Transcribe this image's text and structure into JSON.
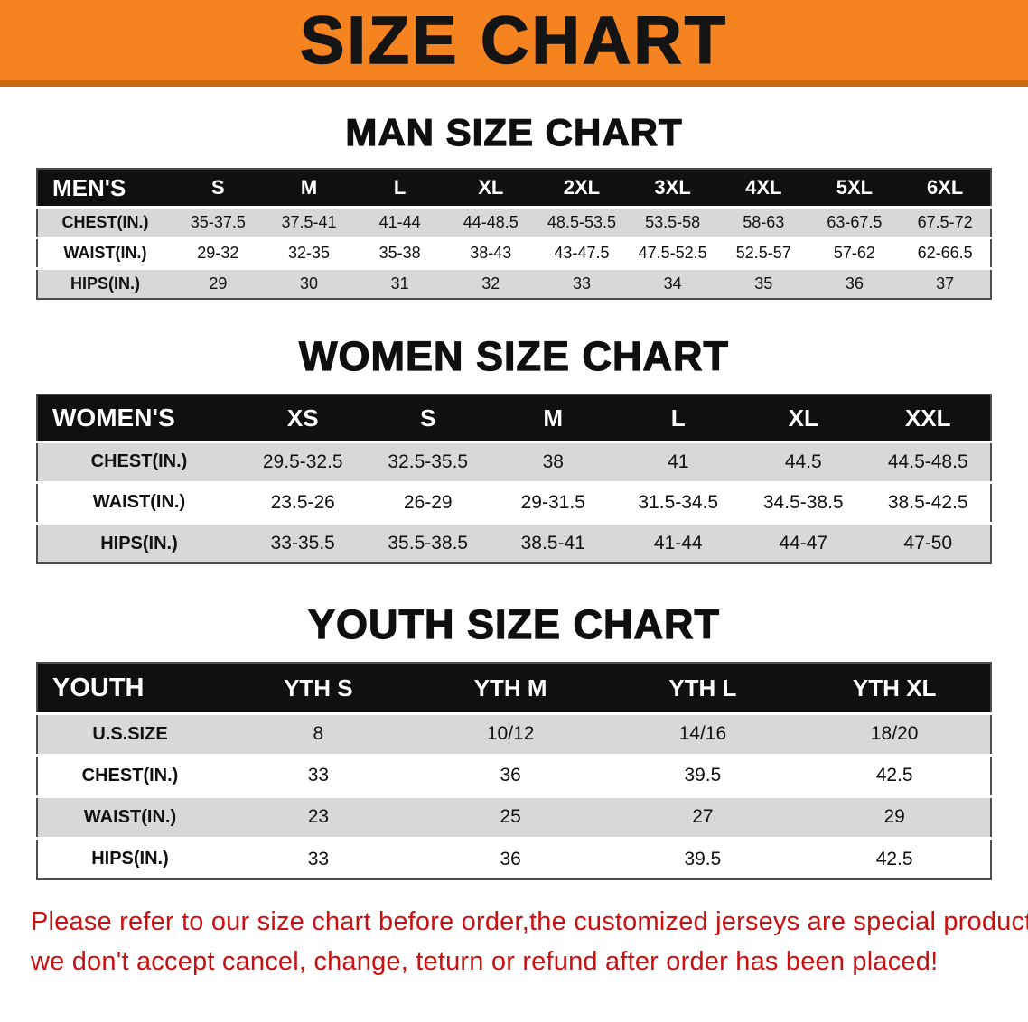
{
  "banner": {
    "title": "SIZE CHART"
  },
  "sections": [
    {
      "heading": "MAN SIZE CHART",
      "table": {
        "corner_label": "MEN'S",
        "columns": [
          "S",
          "M",
          "L",
          "XL",
          "2XL",
          "3XL",
          "4XL",
          "5XL",
          "6XL"
        ],
        "rows": [
          {
            "label": "CHEST(IN.)",
            "values": [
              "35-37.5",
              "37.5-41",
              "41-44",
              "44-48.5",
              "48.5-53.5",
              "53.5-58",
              "58-63",
              "63-67.5",
              "67.5-72"
            ]
          },
          {
            "label": "WAIST(IN.)",
            "values": [
              "29-32",
              "32-35",
              "35-38",
              "38-43",
              "43-47.5",
              "47.5-52.5",
              "52.5-57",
              "57-62",
              "62-66.5"
            ]
          },
          {
            "label": "HIPS(IN.)",
            "values": [
              "29",
              "30",
              "31",
              "32",
              "33",
              "34",
              "35",
              "36",
              "37"
            ]
          }
        ]
      }
    },
    {
      "heading": "WOMEN SIZE CHART",
      "table": {
        "corner_label": "WOMEN'S",
        "columns": [
          "XS",
          "S",
          "M",
          "L",
          "XL",
          "XXL"
        ],
        "rows": [
          {
            "label": "CHEST(IN.)",
            "values": [
              "29.5-32.5",
              "32.5-35.5",
              "38",
              "41",
              "44.5",
              "44.5-48.5"
            ]
          },
          {
            "label": "WAIST(IN.)",
            "values": [
              "23.5-26",
              "26-29",
              "29-31.5",
              "31.5-34.5",
              "34.5-38.5",
              "38.5-42.5"
            ]
          },
          {
            "label": "HIPS(IN.)",
            "values": [
              "33-35.5",
              "35.5-38.5",
              "38.5-41",
              "41-44",
              "44-47",
              "47-50"
            ]
          }
        ]
      }
    },
    {
      "heading": "YOUTH SIZE CHART",
      "table": {
        "corner_label": "YOUTH",
        "columns": [
          "YTH S",
          "YTH M",
          "YTH L",
          "YTH XL"
        ],
        "rows": [
          {
            "label": "U.S.SIZE",
            "values": [
              "8",
              "10/12",
              "14/16",
              "18/20"
            ]
          },
          {
            "label": "CHEST(IN.)",
            "values": [
              "33",
              "36",
              "39.5",
              "42.5"
            ]
          },
          {
            "label": "WAIST(IN.)",
            "values": [
              "23",
              "25",
              "27",
              "29"
            ]
          },
          {
            "label": "HIPS(IN.)",
            "values": [
              "33",
              "36",
              "39.5",
              "42.5"
            ]
          }
        ]
      }
    }
  ],
  "disclaimer": {
    "line1": "Please refer to our size chart before order,the customized jerseys are special products,",
    "line2": "we don't accept cancel, change, teturn or refund after order has been placed!"
  },
  "colors": {
    "banner_bg": "#F5831F",
    "banner_edge": "#C96A10",
    "banner_text": "#141414",
    "table_header_bg": "#101010",
    "row_stripe": "#D8D8D8",
    "disclaimer_text": "#CB1010"
  }
}
